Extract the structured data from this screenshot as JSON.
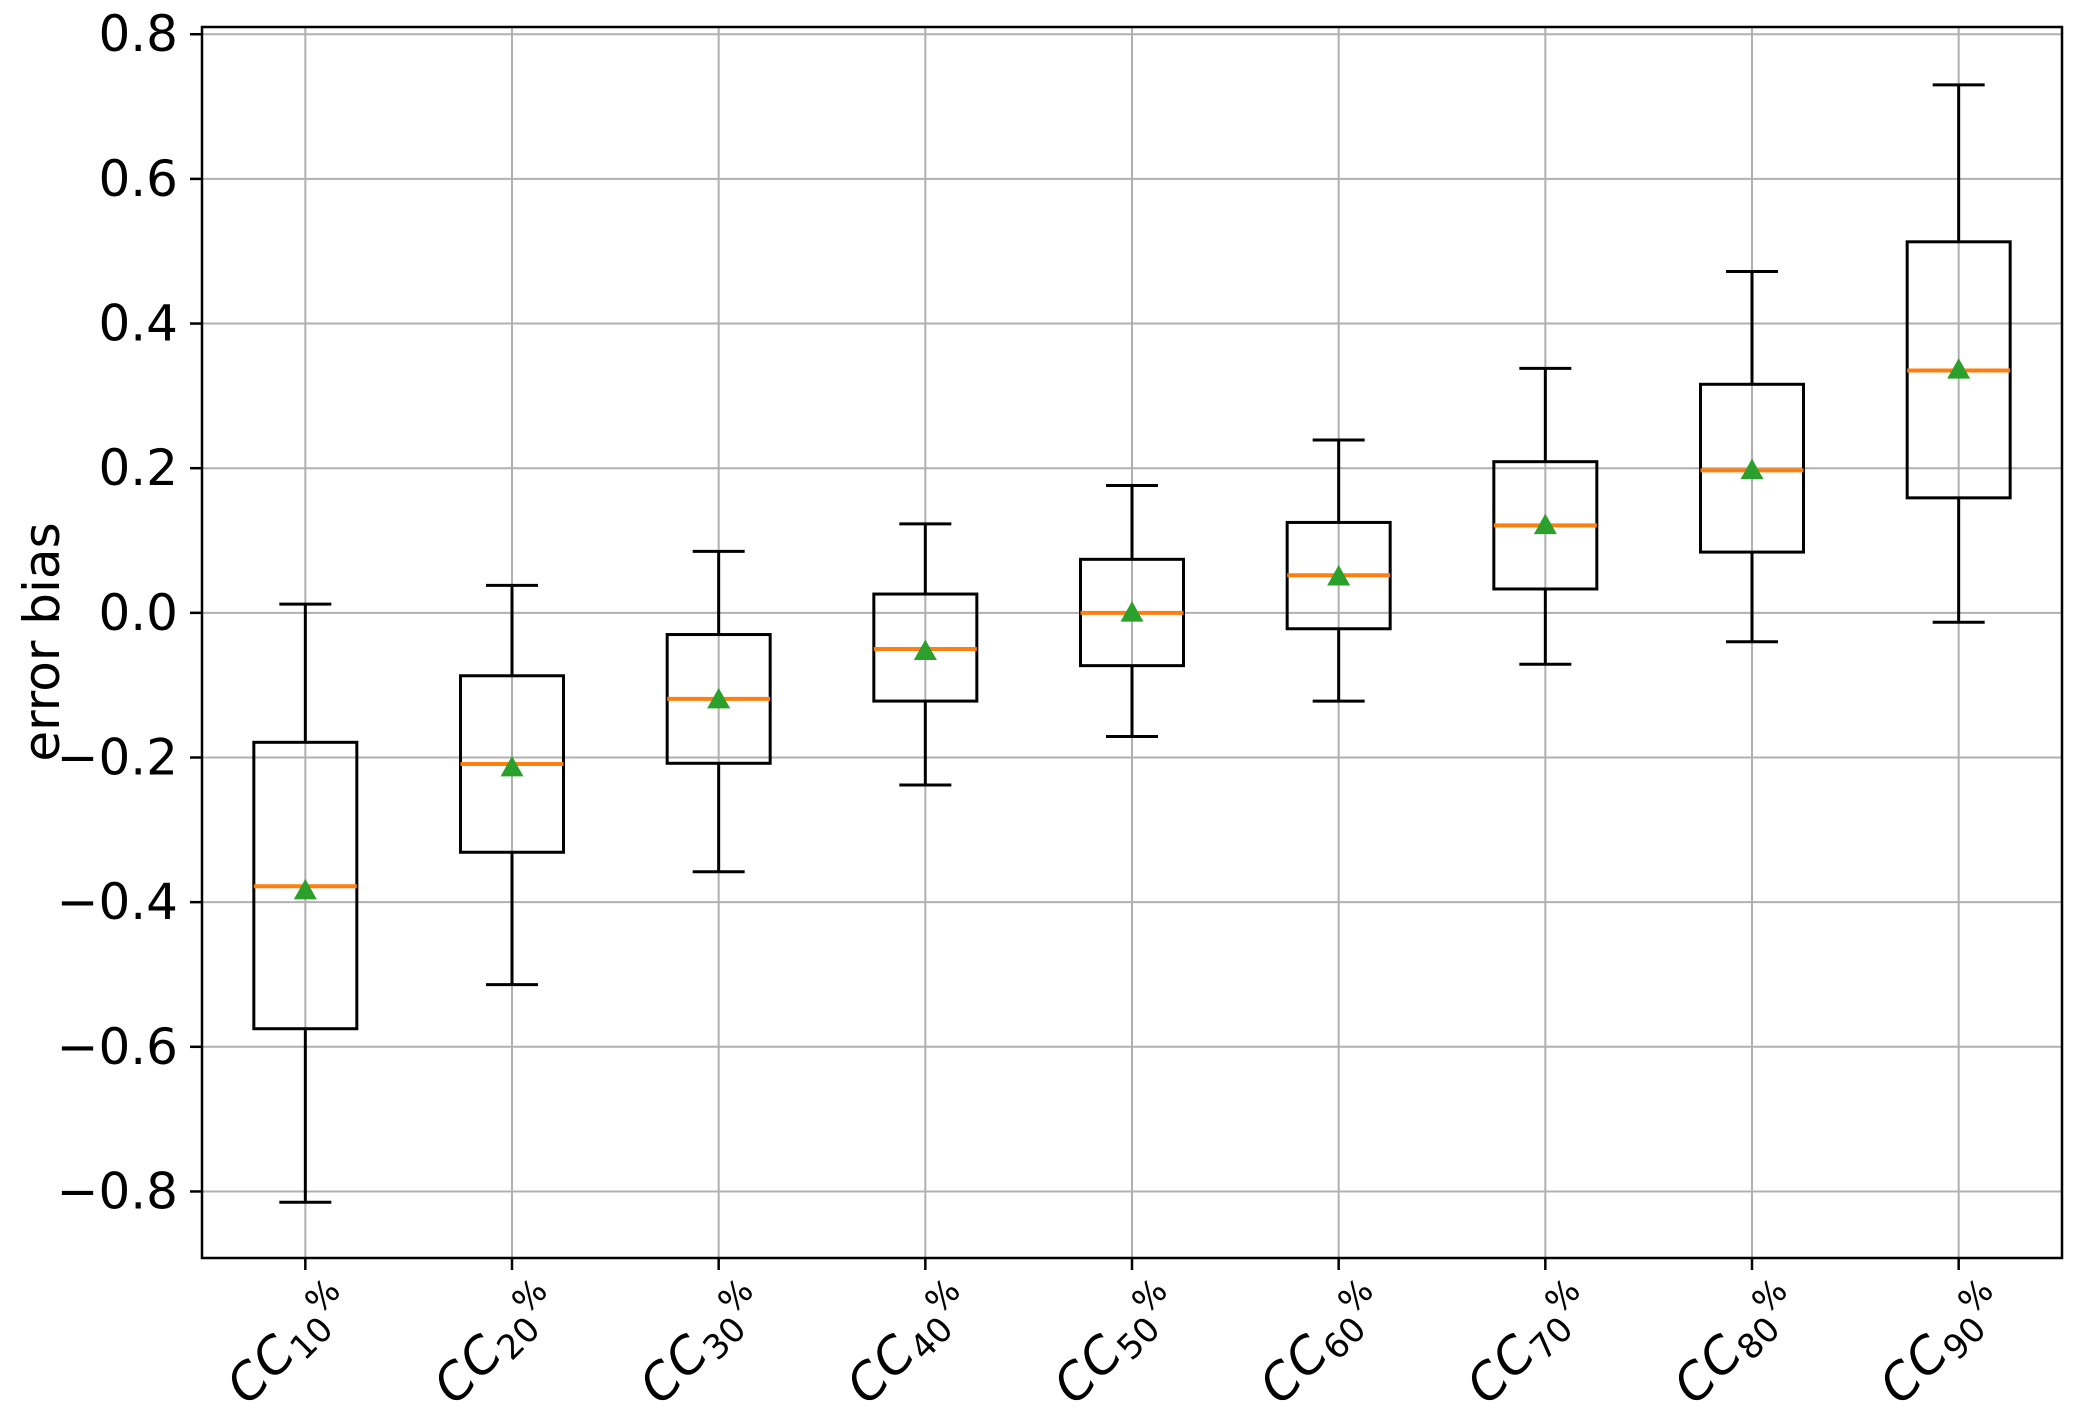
{
  "chart_data": {
    "type": "boxplot",
    "title": "",
    "xlabel": "",
    "ylabel": "error bias",
    "ylim": [
      -0.892,
      0.81
    ],
    "yticks": [
      0.8,
      0.6,
      0.4,
      0.2,
      0.0,
      -0.2,
      -0.4,
      -0.6,
      -0.8
    ],
    "grid": true,
    "legend_position": "none",
    "show_means": true,
    "show_fliers": false,
    "categories": [
      {
        "base": "CC",
        "sub": "10",
        "sup": "%"
      },
      {
        "base": "CC",
        "sub": "20",
        "sup": "%"
      },
      {
        "base": "CC",
        "sub": "30",
        "sup": "%"
      },
      {
        "base": "CC",
        "sub": "40",
        "sup": "%"
      },
      {
        "base": "CC",
        "sub": "50",
        "sup": "%"
      },
      {
        "base": "CC",
        "sub": "60",
        "sup": "%"
      },
      {
        "base": "CC",
        "sub": "70",
        "sup": "%"
      },
      {
        "base": "CC",
        "sub": "80",
        "sup": "%"
      },
      {
        "base": "CC",
        "sub": "90",
        "sup": "%"
      }
    ],
    "boxes": [
      {
        "label": "CC_10%",
        "whislo": -0.815,
        "q1": -0.575,
        "median": -0.378,
        "mean": -0.383,
        "q3": -0.179,
        "whishi": 0.012
      },
      {
        "label": "CC_20%",
        "whislo": -0.514,
        "q1": -0.331,
        "median": -0.209,
        "mean": -0.213,
        "q3": -0.087,
        "whishi": 0.038
      },
      {
        "label": "CC_30%",
        "whislo": -0.358,
        "q1": -0.208,
        "median": -0.119,
        "mean": -0.119,
        "q3": -0.03,
        "whishi": 0.085
      },
      {
        "label": "CC_40%",
        "whislo": -0.238,
        "q1": -0.122,
        "median": -0.05,
        "mean": -0.052,
        "q3": 0.026,
        "whishi": 0.123
      },
      {
        "label": "CC_50%",
        "whislo": -0.171,
        "q1": -0.073,
        "median": 0.0,
        "mean": 0.001,
        "q3": 0.074,
        "whishi": 0.176
      },
      {
        "label": "CC_60%",
        "whislo": -0.122,
        "q1": -0.022,
        "median": 0.052,
        "mean": 0.051,
        "q3": 0.125,
        "whishi": 0.239
      },
      {
        "label": "CC_70%",
        "whislo": -0.071,
        "q1": 0.033,
        "median": 0.121,
        "mean": 0.122,
        "q3": 0.209,
        "whishi": 0.338
      },
      {
        "label": "CC_80%",
        "whislo": -0.04,
        "q1": 0.084,
        "median": 0.197,
        "mean": 0.198,
        "q3": 0.316,
        "whishi": 0.472
      },
      {
        "label": "CC_90%",
        "whislo": -0.013,
        "q1": 0.159,
        "median": 0.335,
        "mean": 0.337,
        "q3": 0.513,
        "whishi": 0.73
      }
    ],
    "colors": {
      "median": "#ff7f0e",
      "mean_marker": "#2ca02c",
      "box_line": "#000000",
      "grid": "#b0b0b0",
      "background": "#ffffff"
    }
  }
}
